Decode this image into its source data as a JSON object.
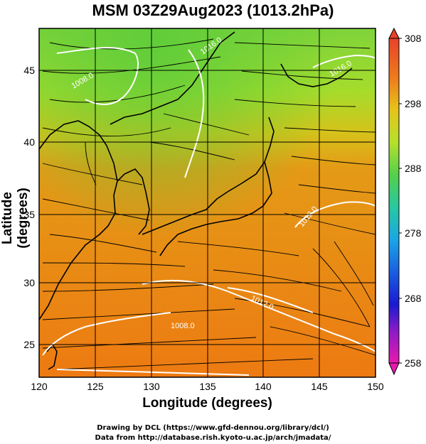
{
  "title": "MSM 03Z29Aug2023 (1013.2hPa)",
  "axes": {
    "xlabel": "Longitude (degrees)",
    "ylabel": "Latitude  (degrees)",
    "xticks": [
      "120",
      "125",
      "130",
      "135",
      "140",
      "145",
      "150"
    ],
    "yticks": [
      "25",
      "30",
      "35",
      "40",
      "45"
    ],
    "xlim": [
      120,
      150
    ],
    "ylim": [
      22.4,
      47.6
    ]
  },
  "colorbar": {
    "ticks": [
      "308",
      "298",
      "288",
      "278",
      "268",
      "258"
    ],
    "range": [
      258,
      308
    ]
  },
  "contour_labels": [
    "1016.0",
    "1008.0",
    "1012.0",
    "1008.0",
    "1016.0",
    "1012.0"
  ],
  "credits": {
    "line1": "Drawing by DCL (https://www.gfd-dennou.org/library/dcl/)",
    "line2": "Data from http://database.rish.kyoto-u.ac.jp/arch/jmadata/"
  },
  "colors": {
    "land": "#000000",
    "contour": "#ffffff",
    "streamline": "#000000"
  }
}
